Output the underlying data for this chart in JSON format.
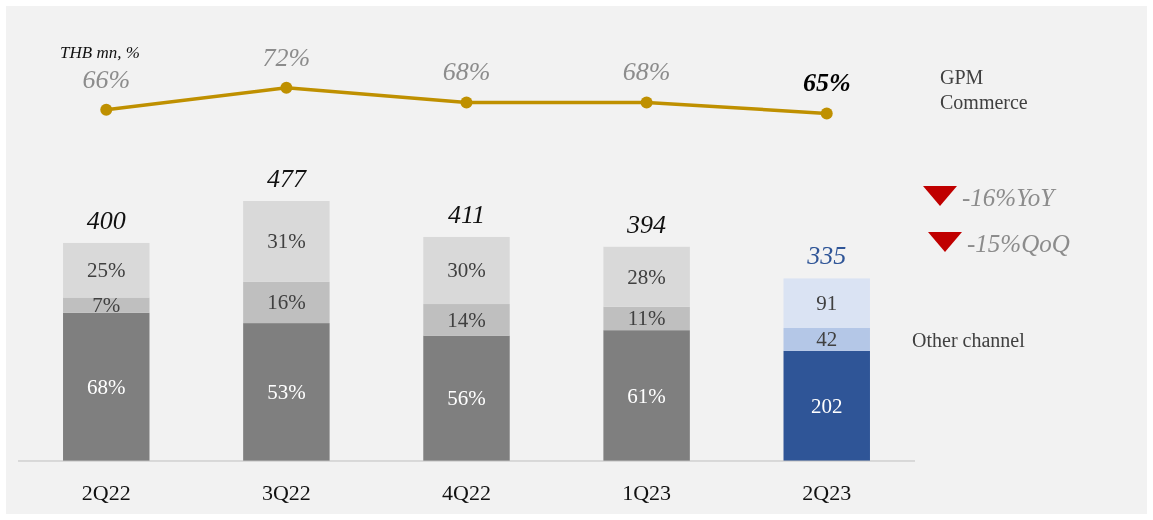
{
  "chart_data": [
    {
      "type": "line",
      "categories": [
        null,
        null,
        null,
        null,
        null
      ],
      "series": [
        {
          "name": "GPM Commerce",
          "color": "#bf9000",
          "values": [
            66,
            72,
            68,
            68,
            65
          ],
          "value_labels": [
            "66%",
            "72%",
            "68%",
            "68%",
            "65%"
          ]
        }
      ],
      "marker": "circle",
      "annotations": [
        "THB mn, %"
      ]
    },
    {
      "type": "bar",
      "stacked": true,
      "categories": [
        "2Q22",
        "3Q22",
        "4Q22",
        "1Q23",
        "2Q23"
      ],
      "series": [
        {
          "colors": [
            "#7f7f7f",
            "#7f7f7f",
            "#7f7f7f",
            "#7f7f7f",
            "#2f5597"
          ],
          "values": [
            272,
            253,
            230,
            240,
            202
          ],
          "value_labels": [
            null,
            null,
            null,
            null,
            "202"
          ]
        },
        {
          "name": "Other channel",
          "colors": [
            "#bfbfbf",
            "#bfbfbf",
            "#bfbfbf",
            "#bfbfbf",
            "#b4c7e7"
          ],
          "values": [
            28,
            76,
            58,
            43,
            42
          ],
          "value_labels": [
            null,
            null,
            null,
            null,
            "42"
          ]
        },
        {
          "colors": [
            "#d9d9d9",
            "#d9d9d9",
            "#d9d9d9",
            "#d9d9d9",
            "#dae3f3"
          ],
          "values": [
            100,
            148,
            123,
            110,
            91
          ],
          "value_labels": [
            null,
            null,
            null,
            null,
            "91"
          ]
        }
      ],
      "totals": [
        "400",
        "477",
        "411",
        "394",
        "335"
      ],
      "annotations": [
        "-16%YoY",
        "-15%QoQ",
        "68%",
        "7%",
        "25%",
        "53%",
        "16%",
        "31%",
        "56%",
        "14%",
        "30%",
        "61%",
        "11%",
        "28%"
      ]
    }
  ]
}
